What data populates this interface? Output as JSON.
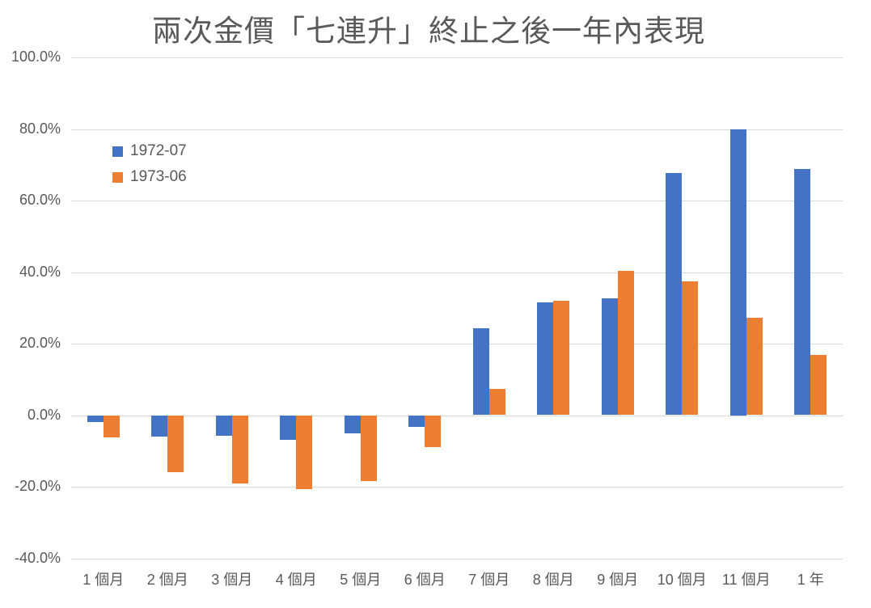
{
  "title": "兩次金價「七連升」終止之後一年內表現",
  "chart_data": {
    "type": "bar",
    "title": "兩次金價「七連升」終止之後一年內表現",
    "categories": [
      "1 個月",
      "2 個月",
      "3 個月",
      "4 個月",
      "5 個月",
      "6 個月",
      "7 個月",
      "8 個月",
      "9 個月",
      "10 個月",
      "11 個月",
      "1 年"
    ],
    "series": [
      {
        "name": "1972-07",
        "color": "#4472C4",
        "values": [
          -2.0,
          -5.9,
          -5.7,
          -7.0,
          -5.0,
          -3.2,
          24.4,
          31.5,
          32.7,
          67.6,
          80.0,
          68.9
        ]
      },
      {
        "name": "1973-06",
        "color": "#ED7D31",
        "values": [
          -6.2,
          -16.0,
          -19.2,
          -20.7,
          -18.4,
          -8.9,
          7.4,
          31.9,
          40.3,
          37.3,
          27.2,
          16.9
        ]
      }
    ],
    "y_tick_labels": [
      "100.0%",
      "80.0%",
      "60.0%",
      "40.0%",
      "20.0%",
      "0.0%",
      "-20.0%",
      "-40.0%"
    ],
    "y_tick_values": [
      100,
      80,
      60,
      40,
      20,
      0,
      -20,
      -40
    ],
    "ylim": [
      -40,
      100
    ],
    "xlabel": "",
    "ylabel": "",
    "grid": true,
    "legend_position": "top-left-inside"
  },
  "colors": {
    "series1": "#4472C4",
    "series2": "#ED7D31",
    "text": "#595959",
    "gridline": "#D9D9D9",
    "background": "#FFFFFF"
  }
}
